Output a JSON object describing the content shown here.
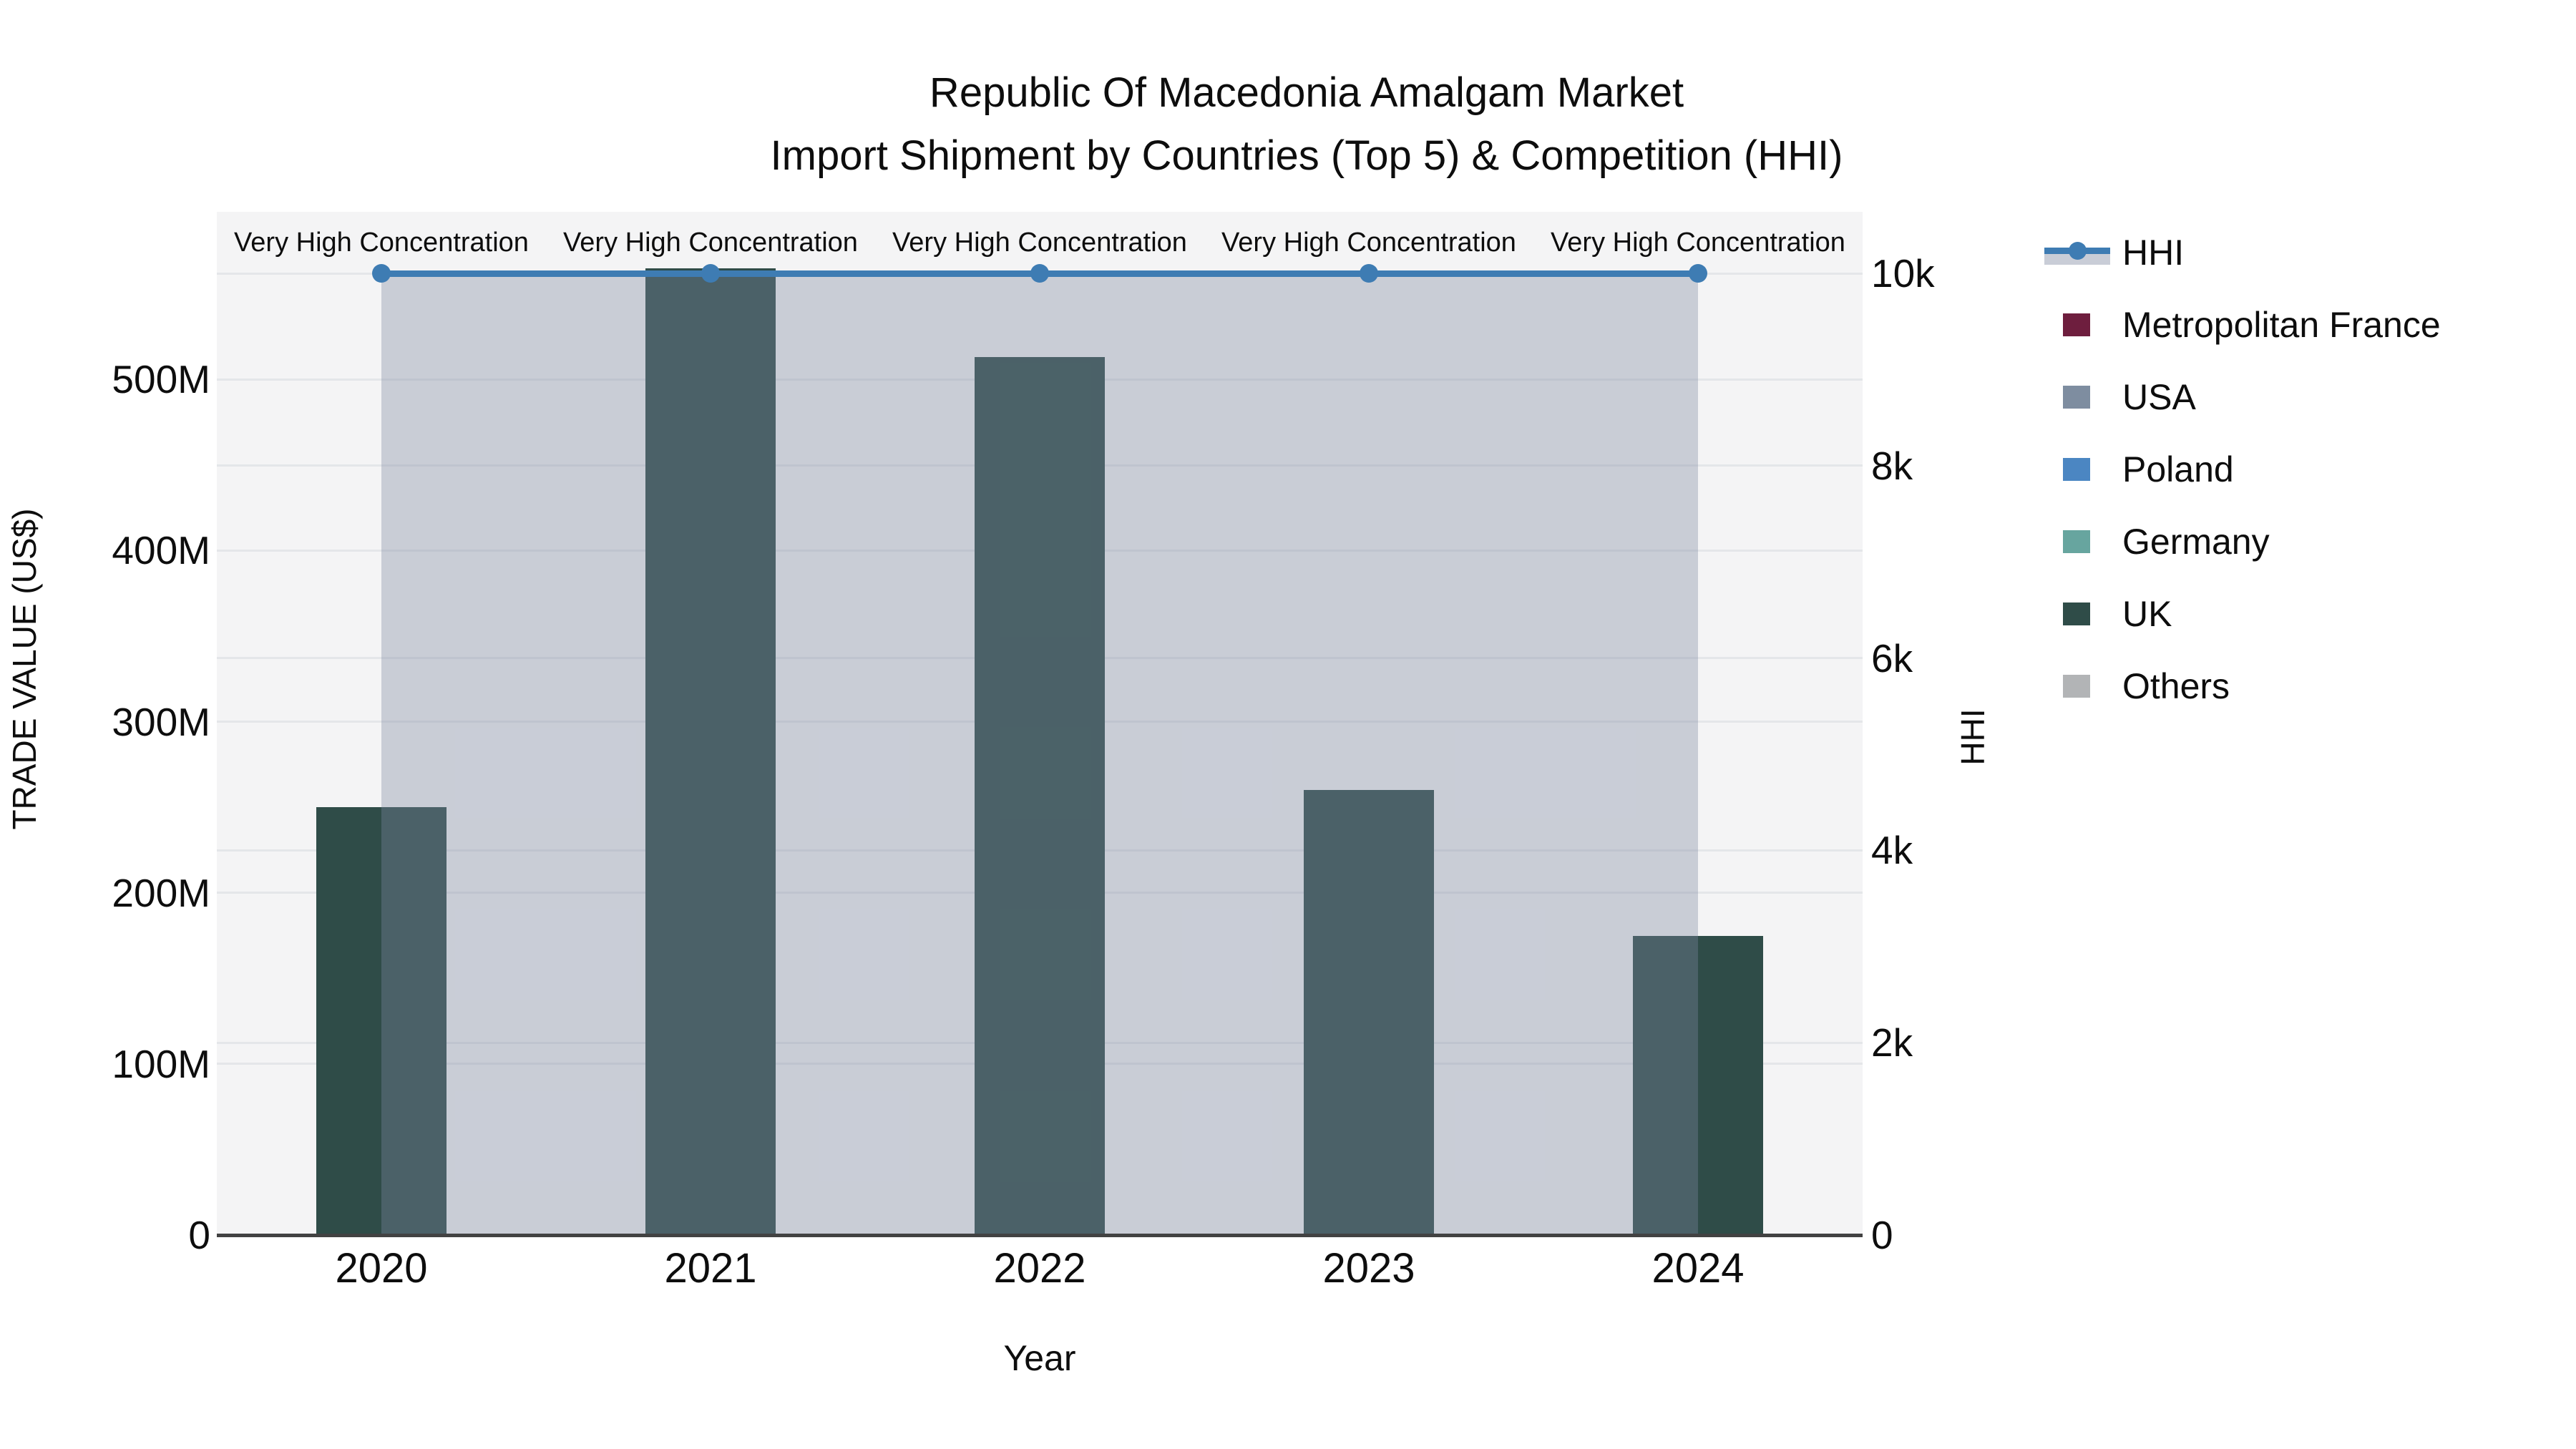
{
  "title": {
    "line1": "Republic Of Macedonia Amalgam Market",
    "line2": "Import Shipment by Countries (Top 5) & Competition (HHI)"
  },
  "axes": {
    "x_label": "Year",
    "left_label": "TRADE VALUE (US$)",
    "right_label": "HHI",
    "left_tick_labels": [
      "0",
      "100M",
      "200M",
      "300M",
      "400M",
      "500M"
    ],
    "right_tick_labels": [
      "0",
      "2k",
      "4k",
      "6k",
      "8k",
      "10k"
    ]
  },
  "legend": {
    "hhi_label": "HHI",
    "items": [
      "Metropolitan France",
      "USA",
      "Poland",
      "Germany",
      "UK",
      "Others"
    ]
  },
  "colors": {
    "hhi_line": "#3e7cb3",
    "hhi_area_fill": "rgba(125,136,162,0.36)",
    "hhi_legend_band": "#c9cdd7",
    "metropolitan_france": "#6e1e3e",
    "usa": "#7e8da0",
    "poland": "#4b86c2",
    "germany": "#67a59f",
    "uk": "#2f4c48",
    "others": "#b2b4b6",
    "plot_background": "#f4f4f5",
    "gridline": "#e4e6e9",
    "axis_line": "#424242"
  },
  "chart_data": {
    "type": "bar",
    "title": "Republic Of Macedonia Amalgam Market — Import Shipment by Countries (Top 5) & Competition (HHI)",
    "categories": [
      "2020",
      "2021",
      "2022",
      "2023",
      "2024"
    ],
    "xlabel": "Year",
    "ylabel_left": "TRADE VALUE (US$)",
    "ylabel_right": "HHI",
    "unit_left": "US$ millions",
    "series": [
      {
        "name": "Metropolitan France",
        "color": "#6e1e3e",
        "values_musd": [
          0,
          0,
          0,
          0,
          0
        ]
      },
      {
        "name": "USA",
        "color": "#7e8da0",
        "values_musd": [
          0,
          0,
          0,
          0,
          0
        ]
      },
      {
        "name": "Poland",
        "color": "#4b86c2",
        "values_musd": [
          0,
          0,
          0,
          0,
          0
        ]
      },
      {
        "name": "Germany",
        "color": "#67a59f",
        "values_musd": [
          0,
          0,
          0,
          0,
          0
        ]
      },
      {
        "name": "UK",
        "color": "#2f4c48",
        "values_musd": [
          250,
          565,
          513,
          260,
          175
        ]
      },
      {
        "name": "Others",
        "color": "#b2b4b6",
        "values_musd": [
          0,
          0,
          0,
          0,
          0
        ]
      }
    ],
    "line_series": {
      "name": "HHI",
      "axis": "right",
      "color": "#3e7cb3",
      "area_fill": true,
      "values": [
        10000,
        10000,
        10000,
        10000,
        10000
      ]
    },
    "annotations": [
      "Very High Concentration",
      "Very High Concentration",
      "Very High Concentration",
      "Very High Concentration",
      "Very High Concentration"
    ],
    "ylim_left_musd": [
      0,
      598
    ],
    "ylim_right": [
      0,
      10640
    ],
    "left_ticks_musd": [
      0,
      100,
      200,
      300,
      400,
      500
    ],
    "right_ticks": [
      0,
      2000,
      4000,
      6000,
      8000,
      10000
    ],
    "grid": true,
    "legend_position": "right",
    "bar_style": "stacked"
  }
}
